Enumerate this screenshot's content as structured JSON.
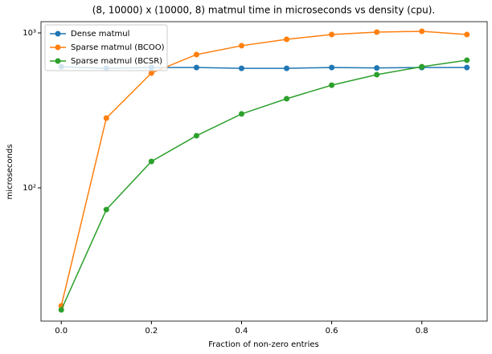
{
  "chart_data": {
    "type": "line",
    "title": "(8, 10000) x (10000, 8) matmul time in microseconds vs density (cpu).",
    "x_label": "Fraction of non-zero entries",
    "y_label": "microseconds",
    "x": [
      0.0,
      0.1,
      0.2,
      0.3,
      0.4,
      0.5,
      0.6,
      0.7,
      0.8,
      0.9
    ],
    "series": [
      {
        "name": "Dense matmul",
        "color": "#1f77b4",
        "values": [
          605,
          591,
          598,
          598,
          591,
          591,
          598,
          594,
          598,
          598
        ]
      },
      {
        "name": "Sparse matmul (BCOO)",
        "color": "#ff7f0e",
        "values": [
          17.3,
          282,
          551,
          725,
          827,
          909,
          976,
          1012,
          1024,
          976
        ]
      },
      {
        "name": "Sparse matmul (BCSR)",
        "color": "#2ca02c",
        "values": [
          16.3,
          72.4,
          148,
          217,
          300,
          376,
          460,
          538,
          605,
          667
        ]
      }
    ],
    "xlim": [
      -0.045,
      0.945
    ],
    "xticks": [
      {
        "value": 0,
        "label": "0.0"
      },
      0.2,
      0.4,
      0.6,
      0.8
    ],
    "ylim": [
      13.8,
      1182
    ],
    "yticks": [
      {
        "value": 100,
        "label": "10²"
      },
      {
        "value": 1000,
        "label": "10³"
      }
    ],
    "y_scale": "log",
    "legend": "upper-left"
  }
}
